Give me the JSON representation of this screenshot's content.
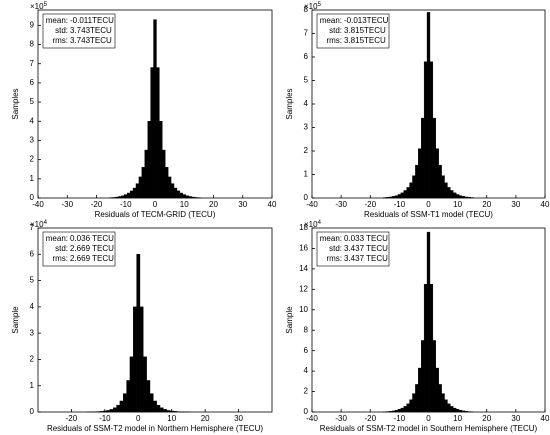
{
  "chart_data": [
    {
      "type": "histogram",
      "x_label": "Residuals of TECM-GRID (TECU)",
      "y_label": "Samples",
      "y_multiplier": "×10",
      "y_multiplier_exp": "5",
      "stats": [
        {
          "label": "mean:",
          "value": "-0.011TECU"
        },
        {
          "label": "std:",
          "value": "3.743TECU"
        },
        {
          "label": "rms:",
          "value": "3.743TECU"
        }
      ],
      "bins": [
        -15.5,
        -14.5,
        -13.5,
        -12.5,
        -11.5,
        -10.5,
        -9.5,
        -8.5,
        -7.5,
        -6.5,
        -5.5,
        -4.5,
        -3.5,
        -2.5,
        -1.5,
        -0.5,
        0.5,
        1.5,
        2.5,
        3.5,
        4.5,
        5.5,
        6.5,
        7.5,
        8.5,
        9.5,
        10.5,
        11.5,
        12.5,
        13.5,
        14.5,
        15.5
      ],
      "values": [
        0.02,
        0.03,
        0.05,
        0.08,
        0.12,
        0.18,
        0.26,
        0.37,
        0.52,
        0.75,
        1.1,
        1.6,
        2.5,
        4.0,
        6.8,
        9.3,
        6.8,
        4.0,
        2.5,
        1.6,
        1.1,
        0.75,
        0.52,
        0.37,
        0.26,
        0.18,
        0.12,
        0.08,
        0.05,
        0.03,
        0.02
      ],
      "color": "#000000",
      "xlim": [
        -40,
        40
      ],
      "xticks": [
        -40,
        -30,
        -20,
        -10,
        0,
        10,
        20,
        30,
        40
      ],
      "ylim": [
        0,
        9.8
      ],
      "yticks": [
        0,
        1,
        2,
        3,
        4,
        5,
        6,
        7,
        8,
        9
      ]
    },
    {
      "type": "histogram",
      "x_label": "Residuals of SSM-T1 model (TECU)",
      "y_label": "Samples",
      "y_multiplier": "×10",
      "y_multiplier_exp": "5",
      "stats": [
        {
          "label": "mean:",
          "value": "-0.013TECU"
        },
        {
          "label": "std:",
          "value": "3.815TECU"
        },
        {
          "label": "rms:",
          "value": "3.815TECU"
        }
      ],
      "bins": [
        -15.5,
        -14.5,
        -13.5,
        -12.5,
        -11.5,
        -10.5,
        -9.5,
        -8.5,
        -7.5,
        -6.5,
        -5.5,
        -4.5,
        -3.5,
        -2.5,
        -1.5,
        -0.5,
        0.5,
        1.5,
        2.5,
        3.5,
        4.5,
        5.5,
        6.5,
        7.5,
        8.5,
        9.5,
        10.5,
        11.5,
        12.5,
        13.5,
        14.5,
        15.5
      ],
      "values": [
        0.02,
        0.03,
        0.045,
        0.07,
        0.1,
        0.15,
        0.22,
        0.32,
        0.45,
        0.65,
        0.95,
        1.4,
        2.1,
        3.4,
        5.8,
        7.9,
        5.8,
        3.4,
        2.1,
        1.4,
        0.95,
        0.65,
        0.45,
        0.32,
        0.22,
        0.15,
        0.1,
        0.07,
        0.045,
        0.03,
        0.02
      ],
      "color": "#000000",
      "xlim": [
        -40,
        40
      ],
      "xticks": [
        -40,
        -30,
        -20,
        -10,
        0,
        10,
        20,
        30,
        40
      ],
      "ylim": [
        0,
        8
      ],
      "yticks": [
        0,
        1,
        2,
        3,
        4,
        5,
        6,
        7,
        8
      ]
    },
    {
      "type": "histogram",
      "x_label": "Residuals of SSM-T2 model in Northern Hemisphere (TECU)",
      "y_label": "Sample",
      "y_multiplier": "×10",
      "y_multiplier_exp": "4",
      "stats": [
        {
          "label": "mean:",
          "value": "0.036 TECU"
        },
        {
          "label": "std:",
          "value": "2.669 TECU"
        },
        {
          "label": "rms:",
          "value": "2.669 TECU"
        }
      ],
      "bins": [
        -15.5,
        -14.5,
        -13.5,
        -12.5,
        -11.5,
        -10.5,
        -9.5,
        -8.5,
        -7.5,
        -6.5,
        -5.5,
        -4.5,
        -3.5,
        -2.5,
        -1.5,
        -0.5,
        0.5,
        1.5,
        2.5,
        3.5,
        4.5,
        5.5,
        6.5,
        7.5,
        8.5,
        9.5,
        10.5,
        11.5,
        12.5,
        13.5,
        14.5,
        15.5
      ],
      "values": [
        0.003,
        0.005,
        0.01,
        0.015,
        0.025,
        0.04,
        0.06,
        0.1,
        0.16,
        0.26,
        0.42,
        0.7,
        1.2,
        2.1,
        4.0,
        6.0,
        4.0,
        2.1,
        1.2,
        0.7,
        0.42,
        0.26,
        0.16,
        0.1,
        0.06,
        0.04,
        0.025,
        0.015,
        0.01,
        0.005,
        0.003
      ],
      "color": "#000000",
      "xlim": [
        -30,
        40
      ],
      "xticks": [
        -20,
        -10,
        0,
        10,
        20,
        30
      ],
      "ylim": [
        0,
        7
      ],
      "yticks": [
        0,
        1,
        2,
        3,
        4,
        5,
        6,
        7
      ]
    },
    {
      "type": "histogram",
      "x_label": "Residuals of SSM-T2 model in Southern Hemisphere (TECU)",
      "y_label": "Sample",
      "y_multiplier": "×10",
      "y_multiplier_exp": "4",
      "stats": [
        {
          "label": "mean:",
          "value": "0.033 TECU"
        },
        {
          "label": "std:",
          "value": "3.437 TECU"
        },
        {
          "label": "rms:",
          "value": "3.437 TECU"
        }
      ],
      "bins": [
        -15.5,
        -14.5,
        -13.5,
        -12.5,
        -11.5,
        -10.5,
        -9.5,
        -8.5,
        -7.5,
        -6.5,
        -5.5,
        -4.5,
        -3.5,
        -2.5,
        -1.5,
        -0.5,
        0.5,
        1.5,
        2.5,
        3.5,
        4.5,
        5.5,
        6.5,
        7.5,
        8.5,
        9.5,
        10.5,
        11.5,
        12.5,
        13.5,
        14.5,
        15.5
      ],
      "values": [
        0.02,
        0.04,
        0.07,
        0.11,
        0.17,
        0.26,
        0.38,
        0.55,
        0.8,
        1.2,
        1.8,
        2.7,
        4.3,
        7.0,
        12.5,
        17.6,
        12.5,
        7.0,
        4.3,
        2.7,
        1.8,
        1.2,
        0.8,
        0.55,
        0.38,
        0.26,
        0.17,
        0.11,
        0.07,
        0.04,
        0.02
      ],
      "color": "#000000",
      "xlim": [
        -40,
        40
      ],
      "xticks": [
        -40,
        -30,
        -20,
        -10,
        0,
        10,
        20,
        30,
        40
      ],
      "ylim": [
        0,
        18
      ],
      "yticks": [
        0,
        2,
        4,
        6,
        8,
        10,
        12,
        14,
        16,
        18
      ]
    }
  ]
}
